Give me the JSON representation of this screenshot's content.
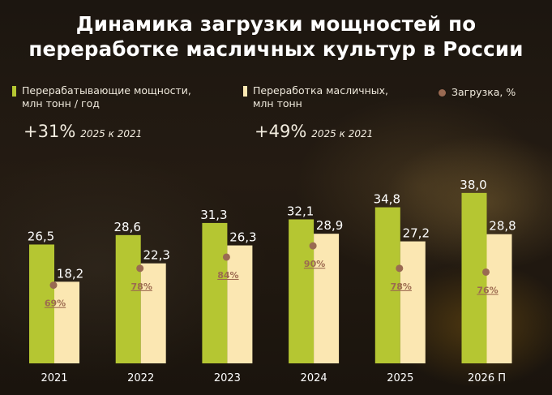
{
  "title_line1": "Динамика загрузки мощностей по",
  "title_line2": "переработке масличных культур в России",
  "legend": {
    "capacity": {
      "line1": "Перерабатывающие мощности,",
      "line2": "млн тонн / год",
      "color": "#b5c632"
    },
    "processing": {
      "line1": "Переработка масличных,",
      "line2": "млн тонн",
      "color": "#fbe7b2"
    },
    "load": {
      "label": "Загрузка, %",
      "color": "#9a6a52"
    }
  },
  "growth": {
    "capacity": {
      "value": "+31%",
      "note": "2025 к 2021"
    },
    "processing": {
      "value": "+49%",
      "note": "2025 к 2021"
    }
  },
  "chart_data": {
    "type": "bar",
    "categories": [
      "2021",
      "2022",
      "2023",
      "2024",
      "2025",
      "2026 П"
    ],
    "series": [
      {
        "name": "Перерабатывающие мощности, млн тонн / год",
        "values": [
          26.5,
          28.6,
          31.3,
          32.1,
          34.8,
          38.0
        ],
        "labels": [
          "26,5",
          "28,6",
          "31,3",
          "32,1",
          "34,8",
          "38,0"
        ]
      },
      {
        "name": "Переработка масличных, млн тонн",
        "values": [
          18.2,
          22.3,
          26.3,
          28.9,
          27.2,
          28.8
        ],
        "labels": [
          "18,2",
          "22,3",
          "26,3",
          "28,9",
          "27,2",
          "28,8"
        ]
      },
      {
        "name": "Загрузка, %",
        "values": [
          69,
          78,
          84,
          90,
          78,
          76
        ],
        "labels": [
          "69%",
          "78%",
          "84%",
          "90%",
          "78%",
          "76%"
        ]
      }
    ],
    "colors": [
      "#b5c632",
      "#fbe7b2",
      "#9a6a52"
    ]
  }
}
